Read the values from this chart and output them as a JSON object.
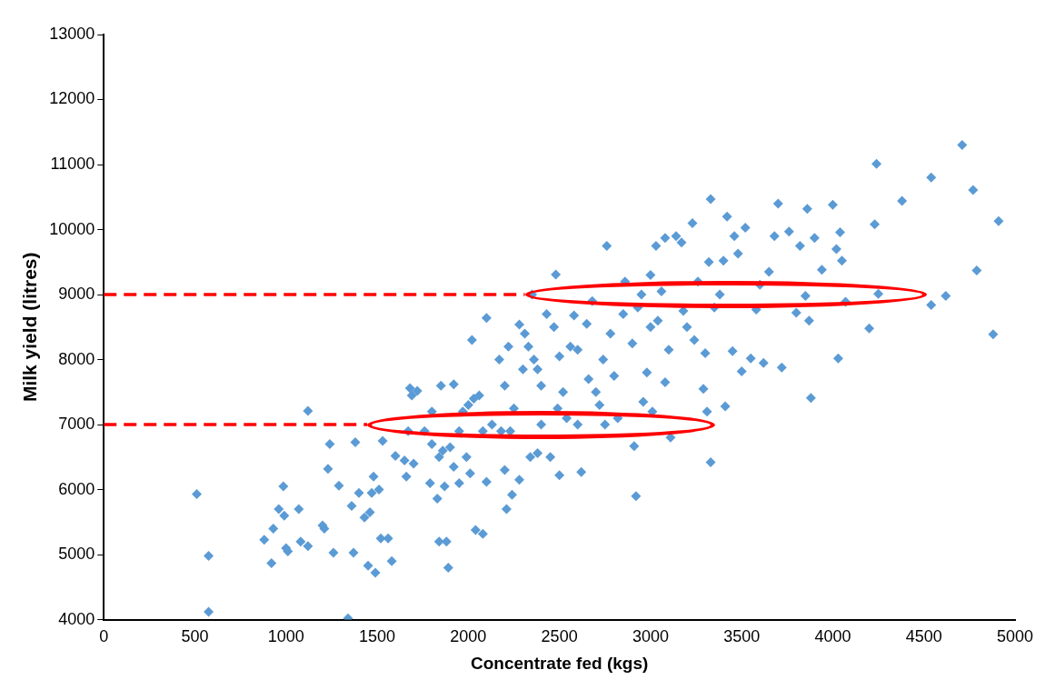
{
  "chart_data": {
    "type": "scatter",
    "xlabel": "Concentrate fed (kgs)",
    "ylabel": "Milk yield (litres)",
    "xlim": [
      0,
      5000
    ],
    "xticks": [
      0,
      500,
      1000,
      1500,
      2000,
      2500,
      3000,
      3500,
      4000,
      4500,
      5000
    ],
    "ylim": [
      4000,
      13000
    ],
    "yticks": [
      4000,
      5000,
      6000,
      7000,
      8000,
      9000,
      10000,
      11000,
      12000,
      13000
    ],
    "grid": false,
    "legend": false,
    "marker": "diamond",
    "ref_lines": [
      {
        "axis": "y",
        "value": 9000,
        "color": "#ff0000",
        "line_style": "dashed"
      },
      {
        "axis": "y",
        "value": 7000,
        "color": "#ff0000",
        "line_style": "dashed"
      }
    ],
    "series": [
      {
        "color": "#5b9bd5",
        "x": [
          510,
          575,
          575,
          880,
          920,
          930,
          960,
          985,
          990,
          1000,
          1010,
          1070,
          1080,
          1120,
          1120,
          1200,
          1210,
          1230,
          1240,
          1260,
          1290,
          1340,
          1360,
          1370,
          1380,
          1400,
          1430,
          1450,
          1460,
          1470,
          1480,
          1490,
          1510,
          1520,
          1530,
          1560,
          1580,
          1600,
          1650,
          1660,
          1670,
          1680,
          1690,
          1700,
          1720,
          1760,
          1790,
          1800,
          1800,
          1830,
          1840,
          1840,
          1850,
          1860,
          1870,
          1880,
          1890,
          1900,
          1920,
          1920,
          1950,
          1950,
          1970,
          1990,
          2000,
          2010,
          2020,
          2030,
          2040,
          2060,
          2080,
          2080,
          2100,
          2100,
          2130,
          2170,
          2180,
          2200,
          2200,
          2210,
          2220,
          2230,
          2240,
          2250,
          2280,
          2280,
          2300,
          2310,
          2330,
          2340,
          2350,
          2360,
          2380,
          2380,
          2400,
          2400,
          2430,
          2450,
          2470,
          2480,
          2490,
          2500,
          2500,
          2520,
          2540,
          2560,
          2580,
          2600,
          2600,
          2620,
          2650,
          2660,
          2680,
          2700,
          2720,
          2740,
          2750,
          2760,
          2780,
          2800,
          2820,
          2850,
          2860,
          2900,
          2910,
          2920,
          2930,
          2950,
          2960,
          2980,
          3000,
          3000,
          3010,
          3030,
          3040,
          3060,
          3080,
          3080,
          3100,
          3110,
          3140,
          3170,
          3180,
          3200,
          3230,
          3240,
          3260,
          3290,
          3300,
          3310,
          3320,
          3330,
          3330,
          3350,
          3380,
          3400,
          3410,
          3420,
          3450,
          3460,
          3480,
          3500,
          3520,
          3550,
          3580,
          3600,
          3620,
          3650,
          3680,
          3700,
          3720,
          3760,
          3800,
          3820,
          3850,
          3860,
          3870,
          3880,
          3900,
          3940,
          4000,
          4020,
          4030,
          4040,
          4050,
          4070,
          4200,
          4230,
          4240,
          4250,
          4380,
          4540,
          4540,
          4620,
          4710,
          4770,
          4790,
          4880,
          4910
        ],
        "values": [
          5930,
          4980,
          4120,
          5230,
          4870,
          5400,
          5700,
          6050,
          5600,
          5100,
          5050,
          5700,
          5200,
          5130,
          7210,
          5450,
          5400,
          6320,
          6700,
          5030,
          6060,
          4020,
          5750,
          5030,
          6730,
          5950,
          5570,
          4830,
          5650,
          5950,
          6200,
          4720,
          6000,
          5250,
          6750,
          5250,
          4900,
          6520,
          6450,
          6200,
          6900,
          7560,
          7450,
          6400,
          7520,
          6900,
          6100,
          6700,
          7200,
          5860,
          6500,
          5200,
          7600,
          6600,
          6050,
          5200,
          4800,
          6650,
          6350,
          7620,
          6100,
          6900,
          7200,
          6500,
          7300,
          6250,
          8300,
          7400,
          5380,
          7450,
          5320,
          6900,
          6120,
          8640,
          7000,
          8000,
          6900,
          6300,
          7600,
          5700,
          8200,
          6900,
          5920,
          7250,
          8540,
          6150,
          7850,
          8400,
          8200,
          6500,
          9000,
          8000,
          7850,
          6560,
          7600,
          7000,
          8700,
          6500,
          8500,
          9310,
          7250,
          8050,
          6220,
          7500,
          7100,
          8200,
          8680,
          8150,
          7000,
          6270,
          8550,
          7700,
          8900,
          7500,
          7300,
          8000,
          7000,
          9750,
          8400,
          7750,
          7100,
          8700,
          9200,
          8250,
          6670,
          5900,
          8800,
          9000,
          7350,
          7800,
          9300,
          8500,
          7200,
          9750,
          8600,
          9050,
          7650,
          9870,
          8150,
          6800,
          9900,
          9800,
          8750,
          8500,
          10100,
          8300,
          9200,
          7550,
          8100,
          7200,
          9500,
          10470,
          6420,
          8800,
          9000,
          9520,
          7280,
          10200,
          8130,
          9900,
          9630,
          7820,
          10030,
          8020,
          8770,
          9150,
          7950,
          9350,
          9900,
          10400,
          7880,
          9970,
          8720,
          9750,
          8980,
          10320,
          8600,
          7410,
          9870,
          9380,
          10380,
          9700,
          8020,
          9960,
          9520,
          8890,
          8480,
          10080,
          11010,
          9010,
          10440,
          10800,
          8840,
          8980,
          11300,
          10610,
          9370,
          8390,
          10130
        ]
      }
    ]
  }
}
